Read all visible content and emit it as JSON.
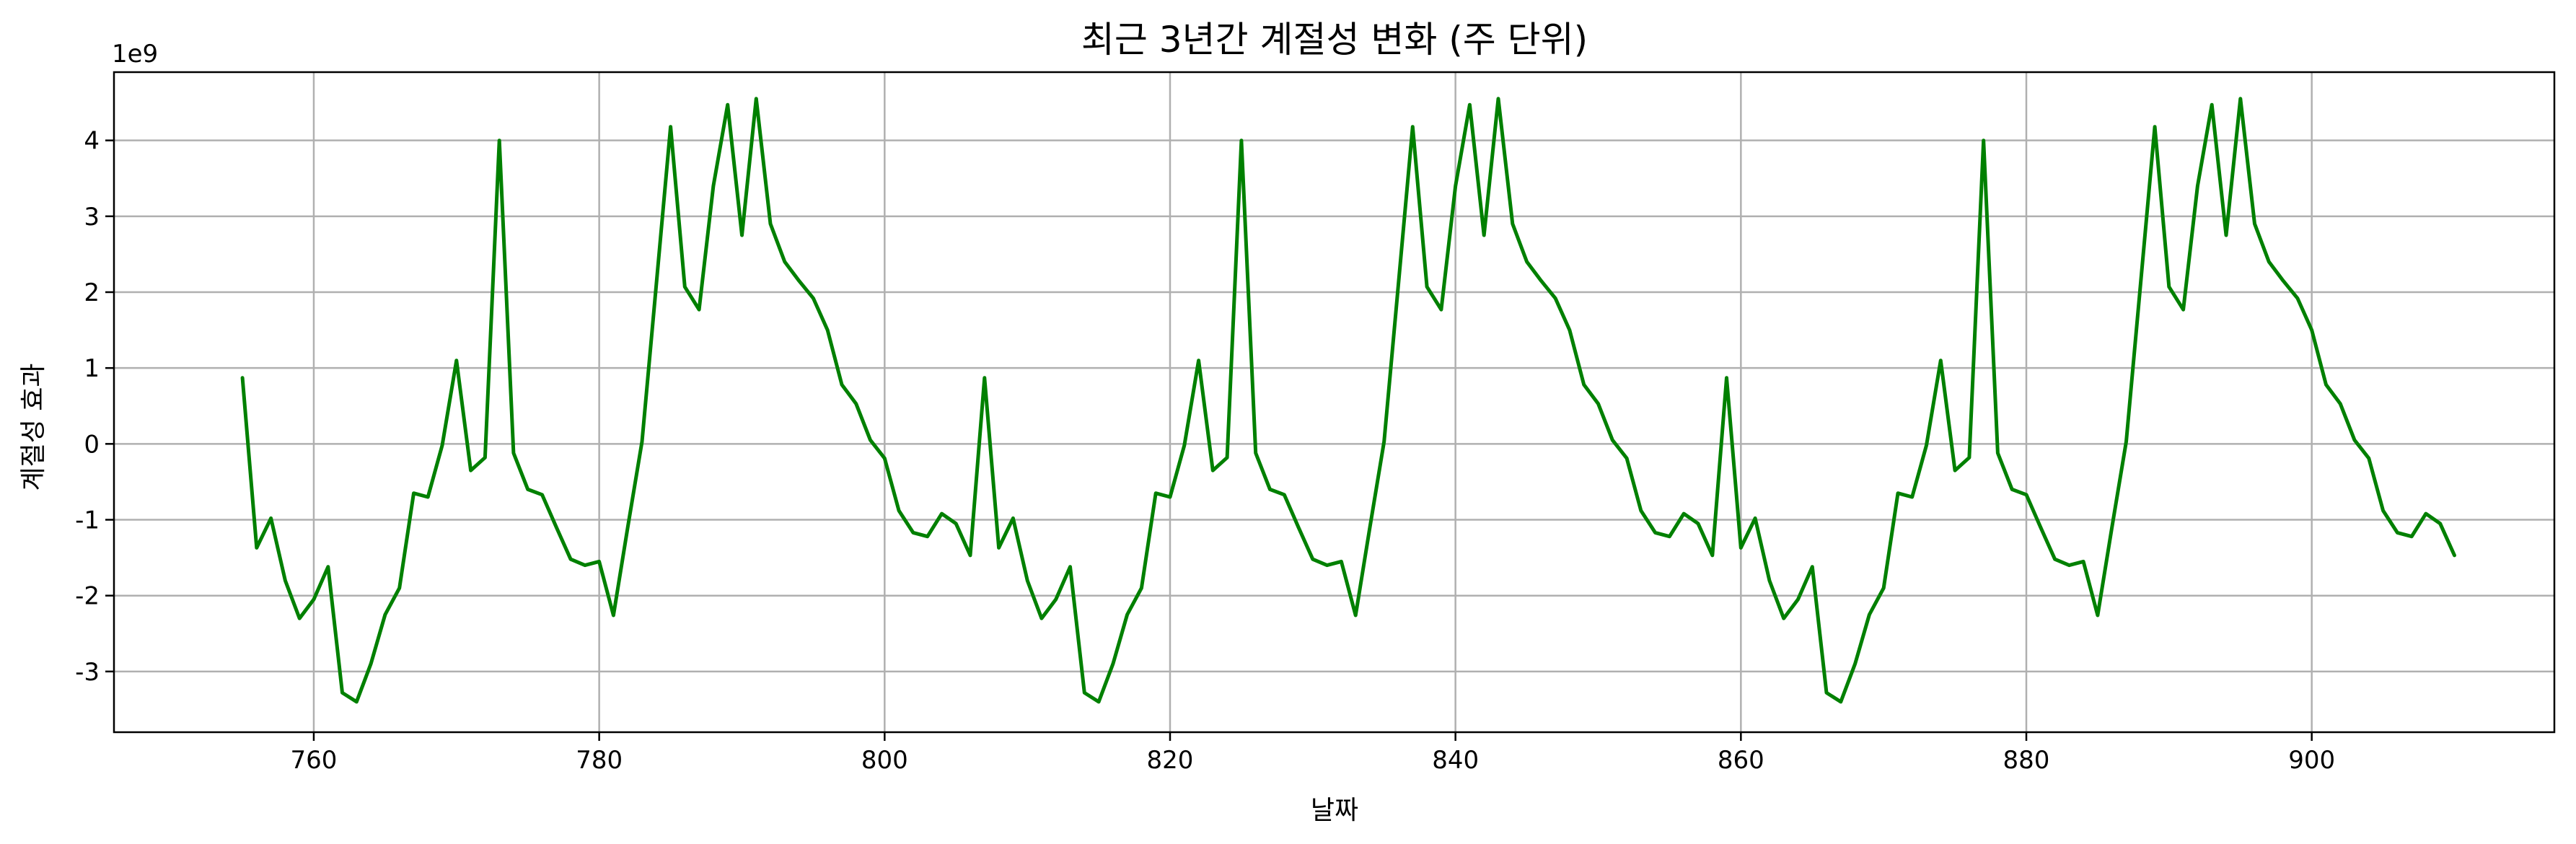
{
  "chart_data": {
    "type": "line",
    "title": "최근 3년간 계절성 변화 (주 단위)",
    "xlabel": "날짜",
    "ylabel": "계절성 효과",
    "y_offset_label": "1e9",
    "xlim": [
      746,
      917
    ],
    "ylim": [
      -3.8,
      4.9
    ],
    "x_ticks": [
      760,
      780,
      800,
      820,
      840,
      860,
      880,
      900
    ],
    "x_tick_labels": [
      "760",
      "780",
      "800",
      "820",
      "840",
      "860",
      "880",
      "900"
    ],
    "y_ticks": [
      -3,
      -2,
      -1,
      0,
      1,
      2,
      3,
      4
    ],
    "y_tick_labels": [
      "-3",
      "-2",
      "-1",
      "0",
      "1",
      "2",
      "3",
      "4"
    ],
    "grid": true,
    "colors": {
      "series": "#008000",
      "grid": "#b0b0b0",
      "frame": "#000000"
    },
    "x_start": 755,
    "series": [
      {
        "values": [
          0.87,
          -1.37,
          -0.98,
          -1.8,
          -2.3,
          -2.05,
          -1.62,
          -3.28,
          -3.4,
          -2.9,
          -2.25,
          -1.9,
          -0.65,
          -0.7,
          -0.02,
          1.1,
          -0.35,
          -0.18,
          4.0,
          -0.12,
          -0.6,
          -0.67,
          -1.1,
          -1.52,
          -1.6,
          -1.55,
          -2.26,
          -1.1,
          0.03,
          2.1,
          4.18,
          2.07,
          1.77,
          3.4,
          4.47,
          2.75,
          4.55,
          2.9,
          2.4,
          2.15,
          1.92,
          1.5,
          0.78,
          0.53,
          0.05,
          -0.19,
          -0.88,
          -1.17,
          -1.22,
          -0.92,
          -1.05,
          -1.47,
          0.87,
          -1.37,
          -0.98,
          -1.8,
          -2.3,
          -2.05,
          -1.62,
          -3.28,
          -3.4,
          -2.9,
          -2.25,
          -1.9,
          -0.65,
          -0.7,
          -0.02,
          1.1,
          -0.35,
          -0.18,
          4.0,
          -0.12,
          -0.6,
          -0.67,
          -1.1,
          -1.52,
          -1.6,
          -1.55,
          -2.26,
          -1.1,
          0.03,
          2.1,
          4.18,
          2.07,
          1.77,
          3.4,
          4.47,
          2.75,
          4.55,
          2.9,
          2.4,
          2.15,
          1.92,
          1.5,
          0.78,
          0.53,
          0.05,
          -0.19,
          -0.88,
          -1.17,
          -1.22,
          -0.92,
          -1.05,
          -1.47,
          0.87,
          -1.37,
          -0.98,
          -1.8,
          -2.3,
          -2.05,
          -1.62,
          -3.28,
          -3.4,
          -2.9,
          -2.25,
          -1.9,
          -0.65,
          -0.7,
          -0.02,
          1.1,
          -0.35,
          -0.18,
          4.0,
          -0.12,
          -0.6,
          -0.67,
          -1.1,
          -1.52,
          -1.6,
          -1.55,
          -2.26,
          -1.1,
          0.03,
          2.1,
          4.18,
          2.07,
          1.77,
          3.4,
          4.47,
          2.75,
          4.55,
          2.9,
          2.4,
          2.15,
          1.92,
          1.5,
          0.78,
          0.53,
          0.05,
          -0.19,
          -0.88,
          -1.17,
          -1.22,
          -0.92,
          -1.05,
          -1.47
        ],
        "color": "#008000"
      }
    ]
  }
}
